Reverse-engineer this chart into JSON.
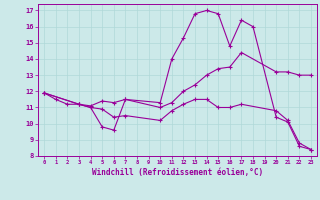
{
  "xlabel": "Windchill (Refroidissement éolien,°C)",
  "background_color": "#cce9e9",
  "grid_color": "#b0d8d8",
  "line_color": "#990099",
  "xlim": [
    -0.5,
    23.5
  ],
  "ylim": [
    8,
    17.4
  ],
  "xticks": [
    0,
    1,
    2,
    3,
    4,
    5,
    6,
    7,
    8,
    9,
    10,
    11,
    12,
    13,
    14,
    15,
    16,
    17,
    18,
    19,
    20,
    21,
    22,
    23
  ],
  "yticks": [
    8,
    9,
    10,
    11,
    12,
    13,
    14,
    15,
    16,
    17
  ],
  "line1_x": [
    0,
    1,
    2,
    3,
    4,
    5,
    6,
    7,
    10,
    11,
    12,
    13,
    14,
    15,
    16,
    17,
    18,
    20,
    21,
    22,
    23
  ],
  "line1_y": [
    11.9,
    11.5,
    11.2,
    11.2,
    11.0,
    9.8,
    9.6,
    11.5,
    11.3,
    14.0,
    15.3,
    16.8,
    17.0,
    16.8,
    14.8,
    16.4,
    16.0,
    10.4,
    10.1,
    8.6,
    8.4
  ],
  "line2_x": [
    0,
    3,
    4,
    5,
    6,
    7,
    10,
    11,
    12,
    13,
    14,
    15,
    16,
    17,
    20,
    21,
    22,
    23
  ],
  "line2_y": [
    11.9,
    11.2,
    11.1,
    11.4,
    11.3,
    11.5,
    11.0,
    11.3,
    12.0,
    12.4,
    13.0,
    13.4,
    13.5,
    14.4,
    13.2,
    13.2,
    13.0,
    13.0
  ],
  "line3_x": [
    0,
    3,
    4,
    5,
    6,
    7,
    10,
    11,
    12,
    13,
    14,
    15,
    16,
    17,
    20,
    21,
    22,
    23
  ],
  "line3_y": [
    11.9,
    11.2,
    11.0,
    10.9,
    10.4,
    10.5,
    10.2,
    10.8,
    11.2,
    11.5,
    11.5,
    11.0,
    11.0,
    11.2,
    10.8,
    10.2,
    8.8,
    8.4
  ]
}
